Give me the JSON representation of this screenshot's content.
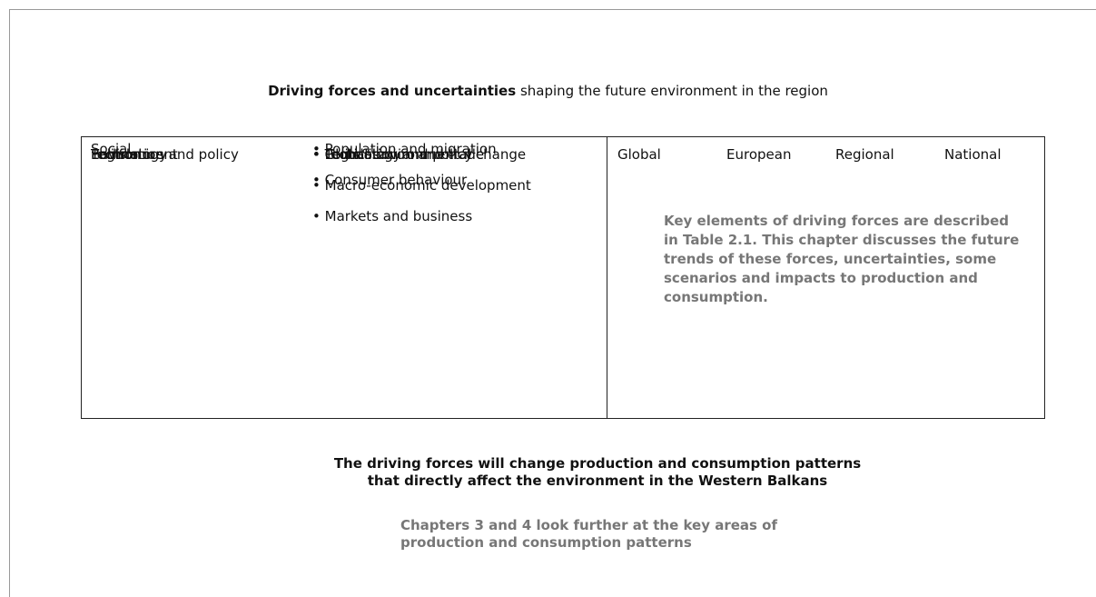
{
  "title": {
    "bold": "Driving forces and uncertainties",
    "rest": "shaping the future environment in the region"
  },
  "table": {
    "rows": [
      {
        "category": "Social",
        "items": [
          "Population and migration",
          "Consumer behaviour"
        ]
      },
      {
        "category": "Technology",
        "items": [
          "Technology"
        ]
      },
      {
        "category": "Economics",
        "items": [
          "Globalisation and trade",
          "Macro-economic development",
          "Markets and business"
        ]
      },
      {
        "category": "Environment",
        "items": [
          "Global environmental change"
        ]
      },
      {
        "category": "Politics",
        "items": [
          "Politics"
        ]
      },
      {
        "category": "Legislation and policy",
        "items": [
          "Legislation and policy"
        ]
      }
    ],
    "scopes": [
      "Global",
      "European",
      "Regional",
      "National"
    ],
    "note": "Key elements of driving forces are described in Table 2.1. This chapter discusses the future trends of these forces, uncertainties, some scenarios and impacts to production and consumption."
  },
  "conclusion": [
    "The driving forces will change production and consumption patterns",
    "that directly affect the environment in the Western Balkans"
  ],
  "footnote": [
    "Chapters 3 and 4 look further at the key areas of",
    "production and consumption patterns"
  ]
}
